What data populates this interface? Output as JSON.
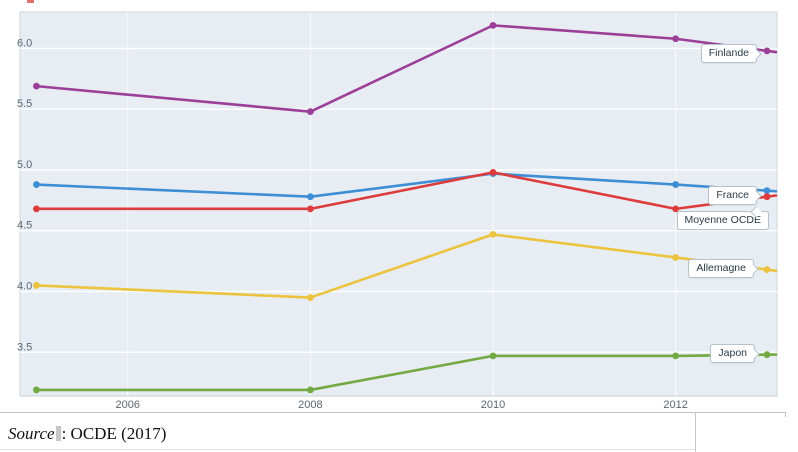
{
  "chart_data": {
    "type": "line",
    "x": [
      2005,
      2008,
      2010,
      2012,
      2013
    ],
    "x_tick_labels": [
      "2006",
      "2008",
      "2010",
      "2012"
    ],
    "y_tick_labels": [
      "6.0",
      "5.5",
      "5.0",
      "4.5",
      "4.0",
      "3.5"
    ],
    "xlim": [
      2004.82,
      2013.11
    ],
    "ylim": [
      3.14,
      6.3
    ],
    "grid": true,
    "legend_position": "end-of-line-labels",
    "plot_bg": "#e7edf2",
    "grid_color": "#ffffff",
    "axis_text_color": "#5d6770",
    "series": [
      {
        "name": "Finlande",
        "color": "#9c3f99",
        "values": [
          5.69,
          5.48,
          6.19,
          6.08,
          5.98
        ]
      },
      {
        "name": "France",
        "color": "#3d8ed5",
        "values": [
          4.88,
          4.78,
          4.97,
          4.88,
          4.83
        ]
      },
      {
        "name": "Moyenne OCDE",
        "color": "#dd3c3c",
        "values": [
          4.68,
          4.68,
          4.98,
          4.68,
          4.78
        ]
      },
      {
        "name": "Allemagne",
        "color": "#ecc33e",
        "values": [
          4.05,
          3.95,
          4.47,
          4.28,
          4.18
        ]
      },
      {
        "name": "Japon",
        "color": "#73a942",
        "values": [
          3.19,
          3.19,
          3.47,
          3.47,
          3.48
        ]
      }
    ]
  },
  "source": {
    "word": "Source",
    "rest": ": OCDE (2017)"
  }
}
